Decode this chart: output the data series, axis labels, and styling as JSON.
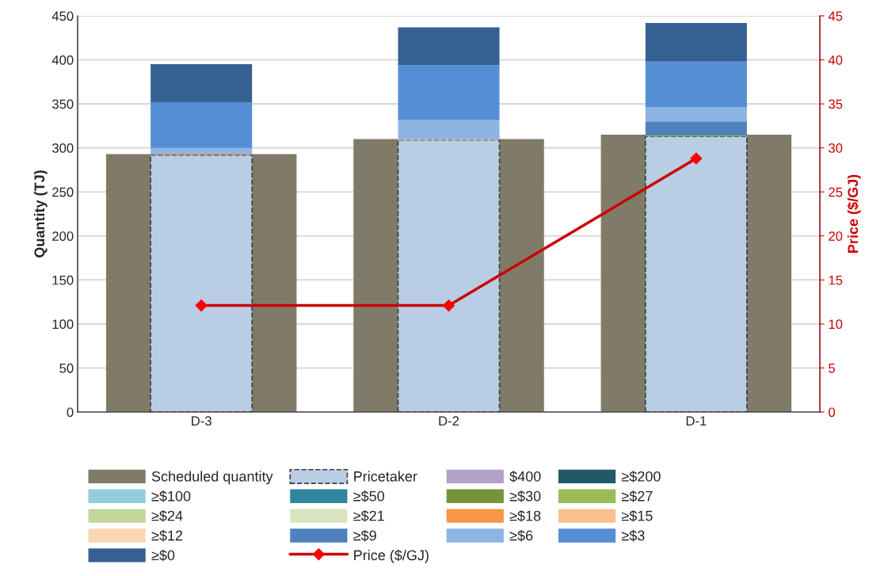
{
  "chart_data": {
    "type": "bar",
    "categories": [
      "D-3",
      "D-2",
      "D-1"
    ],
    "ylabel": "Quantity (TJ)",
    "y2label": "Price ($/GJ)",
    "ylim": [
      0,
      450
    ],
    "yticks": [
      0,
      50,
      100,
      150,
      200,
      250,
      300,
      350,
      400,
      450
    ],
    "y2lim": [
      0,
      45
    ],
    "y2ticks": [
      0,
      5,
      10,
      15,
      20,
      25,
      30,
      35,
      40,
      45
    ],
    "grid": "y",
    "legend": "bottom",
    "series": [
      {
        "name": "Scheduled quantity",
        "color": "#7f7b68",
        "values": [
          293,
          310,
          315
        ]
      },
      {
        "name": "Pricetaker",
        "color": "#b9cde4",
        "line_style": "dashed",
        "base": [
          0,
          0,
          0
        ],
        "values": [
          292,
          309,
          313
        ]
      },
      {
        "name": "$400",
        "color": "#b3a2c7",
        "values": [
          null,
          null,
          null
        ]
      },
      {
        "name": "≥$200",
        "color": "#215968",
        "values": [
          null,
          null,
          null
        ]
      },
      {
        "name": "≥$100",
        "color": "#93cddd",
        "values": [
          null,
          null,
          null
        ]
      },
      {
        "name": "≥$50",
        "color": "#31859c",
        "values": [
          null,
          null,
          null
        ]
      },
      {
        "name": "≥$30",
        "color": "#77933c",
        "values": [
          null,
          null,
          null
        ]
      },
      {
        "name": "≥$27",
        "color": "#9bbb59",
        "base": [
          null,
          null,
          313
        ],
        "values": [
          null,
          null,
          1
        ]
      },
      {
        "name": "≥$24",
        "color": "#c3d69b",
        "values": [
          null,
          null,
          null
        ]
      },
      {
        "name": "≥$21",
        "color": "#d7e4bd",
        "values": [
          null,
          null,
          null
        ]
      },
      {
        "name": "≥$18",
        "color": "#f79646",
        "base": [
          292,
          null,
          null
        ],
        "values": [
          1,
          null,
          null
        ]
      },
      {
        "name": "≥$15",
        "color": "#fac090",
        "base": [
          null,
          309,
          null
        ],
        "values": [
          null,
          1,
          null
        ]
      },
      {
        "name": "≥$12",
        "color": "#fcd5b5",
        "values": [
          null,
          null,
          null
        ]
      },
      {
        "name": "≥$9",
        "color": "#4f81bd",
        "base": [
          null,
          null,
          314
        ],
        "values": [
          null,
          null,
          16
        ]
      },
      {
        "name": "≥$6",
        "color": "#8eb4e3",
        "base": [
          293,
          310,
          330
        ],
        "values": [
          7,
          22,
          16
        ]
      },
      {
        "name": "≥$3",
        "color": "#558ed5",
        "base": [
          300,
          332,
          346
        ],
        "values": [
          52,
          62,
          52
        ]
      },
      {
        "name": "≥$0",
        "color": "#376092",
        "base": [
          352,
          394,
          398
        ],
        "values": [
          43,
          43,
          44
        ]
      },
      {
        "name": "Price ($/GJ)",
        "type": "line",
        "axis": "y2",
        "color": "#cc0000",
        "marker": "diamond",
        "values": [
          12.1,
          12.1,
          28.8
        ]
      }
    ]
  }
}
